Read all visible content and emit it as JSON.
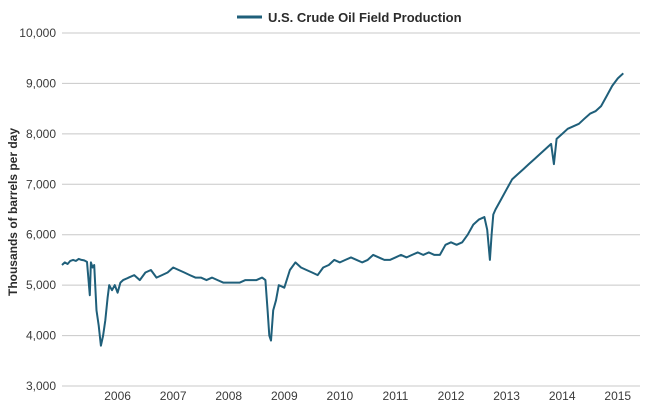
{
  "chart_data": {
    "type": "line",
    "legend_position": "top-center",
    "grid": "horizontal",
    "ylabel": "Thousands of barrels per day",
    "ylim": [
      3000,
      10000
    ],
    "yticks": [
      3000,
      4000,
      5000,
      6000,
      7000,
      8000,
      9000,
      10000
    ],
    "ytick_labels": [
      "3,000",
      "4,000",
      "5,000",
      "6,000",
      "7,000",
      "8,000",
      "9,000",
      "10,000"
    ],
    "xlim": [
      2005.0,
      2015.4
    ],
    "xticks": [
      2006,
      2007,
      2008,
      2009,
      2010,
      2011,
      2012,
      2013,
      2014,
      2015
    ],
    "xtick_labels": [
      "2006",
      "2007",
      "2008",
      "2009",
      "2010",
      "2011",
      "2012",
      "2013",
      "2014",
      "2015"
    ],
    "line_color": "#1f5f7a",
    "series": [
      {
        "name": "U.S. Crude Oil Field Production",
        "x": [
          2005.0,
          2005.05,
          2005.1,
          2005.15,
          2005.2,
          2005.25,
          2005.3,
          2005.35,
          2005.4,
          2005.45,
          2005.5,
          2005.52,
          2005.55,
          2005.58,
          2005.62,
          2005.66,
          2005.7,
          2005.74,
          2005.78,
          2005.82,
          2005.85,
          2005.9,
          2005.95,
          2006.0,
          2006.05,
          2006.1,
          2006.2,
          2006.3,
          2006.4,
          2006.5,
          2006.6,
          2006.7,
          2006.8,
          2006.9,
          2007.0,
          2007.1,
          2007.2,
          2007.3,
          2007.4,
          2007.5,
          2007.6,
          2007.7,
          2007.8,
          2007.9,
          2008.0,
          2008.1,
          2008.2,
          2008.3,
          2008.4,
          2008.5,
          2008.6,
          2008.66,
          2008.7,
          2008.73,
          2008.76,
          2008.8,
          2008.85,
          2008.9,
          2009.0,
          2009.1,
          2009.2,
          2009.3,
          2009.4,
          2009.5,
          2009.6,
          2009.7,
          2009.8,
          2009.9,
          2010.0,
          2010.1,
          2010.2,
          2010.3,
          2010.4,
          2010.5,
          2010.6,
          2010.7,
          2010.8,
          2010.9,
          2011.0,
          2011.1,
          2011.2,
          2011.3,
          2011.4,
          2011.5,
          2011.6,
          2011.7,
          2011.8,
          2011.9,
          2012.0,
          2012.1,
          2012.2,
          2012.3,
          2012.4,
          2012.5,
          2012.6,
          2012.65,
          2012.7,
          2012.73,
          2012.76,
          2012.8,
          2012.9,
          2013.0,
          2013.1,
          2013.2,
          2013.3,
          2013.4,
          2013.5,
          2013.6,
          2013.7,
          2013.8,
          2013.85,
          2013.9,
          2014.0,
          2014.1,
          2014.2,
          2014.3,
          2014.4,
          2014.5,
          2014.6,
          2014.7,
          2014.8,
          2014.9,
          2015.0,
          2015.05,
          2015.1
        ],
        "values": [
          5400,
          5450,
          5420,
          5480,
          5500,
          5480,
          5520,
          5500,
          5490,
          5460,
          4800,
          5450,
          5350,
          5400,
          4500,
          4200,
          3800,
          4000,
          4300,
          4750,
          5000,
          4900,
          5000,
          4850,
          5050,
          5100,
          5150,
          5200,
          5100,
          5250,
          5300,
          5150,
          5200,
          5250,
          5350,
          5300,
          5250,
          5200,
          5150,
          5150,
          5100,
          5150,
          5100,
          5050,
          5050,
          5050,
          5050,
          5100,
          5100,
          5100,
          5150,
          5100,
          4500,
          4000,
          3900,
          4500,
          4700,
          5000,
          4950,
          5300,
          5450,
          5350,
          5300,
          5250,
          5200,
          5350,
          5400,
          5500,
          5450,
          5500,
          5550,
          5500,
          5450,
          5500,
          5600,
          5550,
          5500,
          5500,
          5550,
          5600,
          5550,
          5600,
          5650,
          5600,
          5650,
          5600,
          5600,
          5800,
          5850,
          5800,
          5850,
          6000,
          6200,
          6300,
          6350,
          6100,
          5500,
          6000,
          6400,
          6500,
          6700,
          6900,
          7100,
          7200,
          7300,
          7400,
          7500,
          7600,
          7700,
          7800,
          7400,
          7900,
          8000,
          8100,
          8150,
          8200,
          8300,
          8400,
          8450,
          8550,
          8750,
          8950,
          9100,
          9150,
          9200
        ]
      }
    ]
  }
}
